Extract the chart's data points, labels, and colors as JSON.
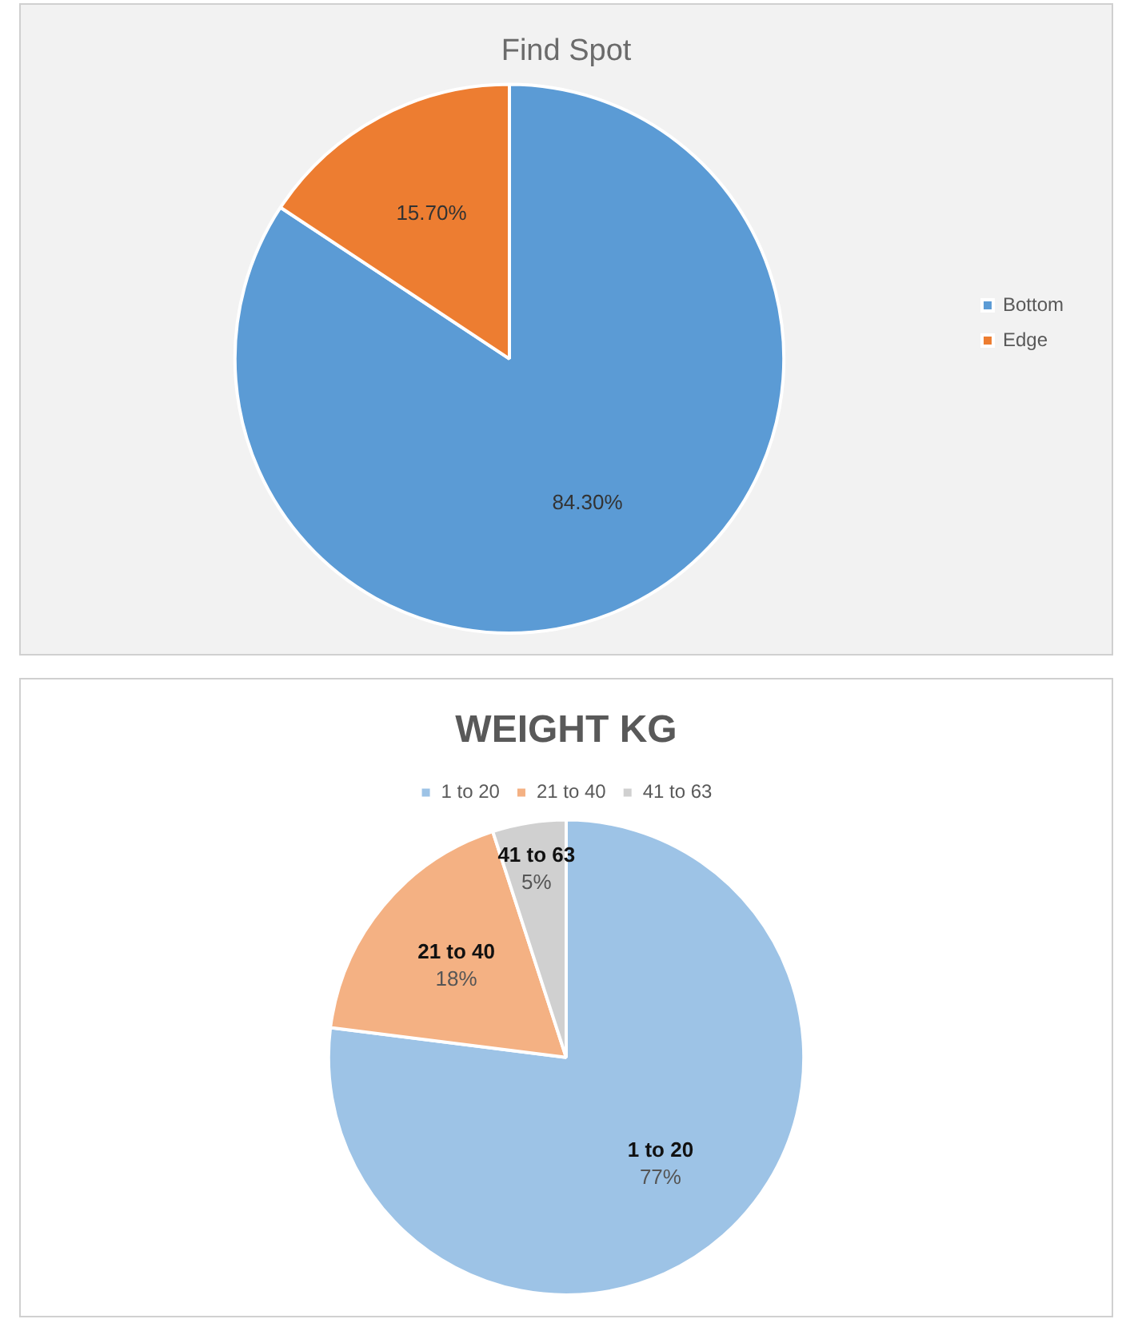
{
  "chart_data": [
    {
      "type": "pie",
      "title": "Find Spot",
      "categories": [
        "Bottom",
        "Edge"
      ],
      "values": [
        84.3,
        15.7
      ],
      "colors": [
        "#5b9bd5",
        "#ed7d31"
      ],
      "value_labels": [
        "84.30%",
        "15.70%"
      ],
      "legend": "right"
    },
    {
      "type": "pie",
      "title": "WEIGHT KG",
      "categories": [
        "1 to 20",
        "21 to 40",
        "41 to 63"
      ],
      "values": [
        77,
        18,
        5
      ],
      "colors": [
        "#9dc3e6",
        "#f4b183",
        "#d0d0d0"
      ],
      "value_labels": [
        "1 to 20\n77%",
        "21 to 40\n18%",
        "41 to 63\n5%"
      ],
      "legend": "top"
    }
  ]
}
